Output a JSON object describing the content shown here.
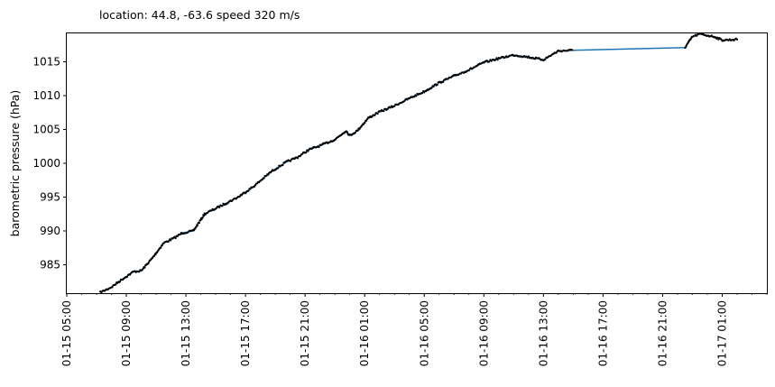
{
  "chart_data": {
    "type": "line",
    "title": "location: 44.8, -63.6 speed 320 m/s",
    "ylabel": "barometric pressure (hPa)",
    "xlabel": "",
    "x_range": [
      "2025-01-15 05:00",
      "2025-01-17 04:00"
    ],
    "ylim": [
      980.8,
      1019.2
    ],
    "y_ticks": [
      985,
      990,
      995,
      1000,
      1005,
      1010,
      1015
    ],
    "y_tick_labels": [
      "985",
      "990",
      "995",
      "1000",
      "1005",
      "1010",
      "1015"
    ],
    "x_ticks": [
      "2025-01-15 05:00",
      "2025-01-15 09:00",
      "2025-01-15 13:00",
      "2025-01-15 17:00",
      "2025-01-15 21:00",
      "2025-01-16 01:00",
      "2025-01-16 05:00",
      "2025-01-16 09:00",
      "2025-01-16 13:00",
      "2025-01-16 17:00",
      "2025-01-16 21:00",
      "2025-01-17 01:00"
    ],
    "x_tick_labels": [
      "01-15 05:00",
      "01-15 09:00",
      "01-15 13:00",
      "01-15 17:00",
      "01-15 21:00",
      "01-16 01:00",
      "01-16 05:00",
      "01-16 09:00",
      "01-16 13:00",
      "01-16 17:00",
      "01-16 21:00",
      "01-17 01:00"
    ],
    "grid": false,
    "colors": {
      "line": "#1f77b4",
      "markers": "#000000",
      "axes": "#000000"
    },
    "series": [
      {
        "line_color": "#1f77b4",
        "marker_color": "#000000",
        "x": [
          "2025-01-15 07:15",
          "2025-01-15 08:00",
          "2025-01-15 08:45",
          "2025-01-15 09:30",
          "2025-01-15 10:00",
          "2025-01-15 10:45",
          "2025-01-15 11:30",
          "2025-01-15 12:15",
          "2025-01-15 12:45",
          "2025-01-15 13:30",
          "2025-01-15 14:15",
          "2025-01-15 15:15",
          "2025-01-15 16:30",
          "2025-01-15 17:30",
          "2025-01-15 18:45",
          "2025-01-15 19:45",
          "2025-01-15 20:30",
          "2025-01-15 21:15",
          "2025-01-15 22:00",
          "2025-01-15 23:00",
          "2025-01-15 23:45",
          "2025-01-16 00:00",
          "2025-01-16 00:30",
          "2025-01-16 01:15",
          "2025-01-16 02:00",
          "2025-01-16 03:00",
          "2025-01-16 04:00",
          "2025-01-16 05:00",
          "2025-01-16 06:00",
          "2025-01-16 07:00",
          "2025-01-16 08:00",
          "2025-01-16 09:00",
          "2025-01-16 10:00",
          "2025-01-16 11:00",
          "2025-01-16 12:00",
          "2025-01-16 13:00",
          "2025-01-16 14:00",
          "2025-01-16 15:00",
          "2025-01-16 22:30",
          "2025-01-16 23:00",
          "2025-01-16 23:30",
          "2025-01-17 00:00",
          "2025-01-17 00:30",
          "2025-01-17 01:00",
          "2025-01-17 02:00"
        ],
        "values": [
          980.9,
          981.7,
          982.9,
          984.0,
          984.1,
          986.0,
          988.2,
          989.0,
          989.7,
          990.0,
          992.5,
          993.6,
          995.0,
          996.5,
          998.8,
          1000.2,
          1000.9,
          1002.0,
          1002.6,
          1003.5,
          1004.8,
          1004.1,
          1004.8,
          1006.7,
          1007.6,
          1008.5,
          1009.6,
          1010.6,
          1011.9,
          1012.9,
          1013.8,
          1014.9,
          1015.5,
          1016.0,
          1015.7,
          1015.3,
          1016.6,
          1016.7,
          1017.1,
          1018.7,
          1019.1,
          1018.9,
          1018.7,
          1018.2,
          1018.3
        ]
      }
    ]
  }
}
